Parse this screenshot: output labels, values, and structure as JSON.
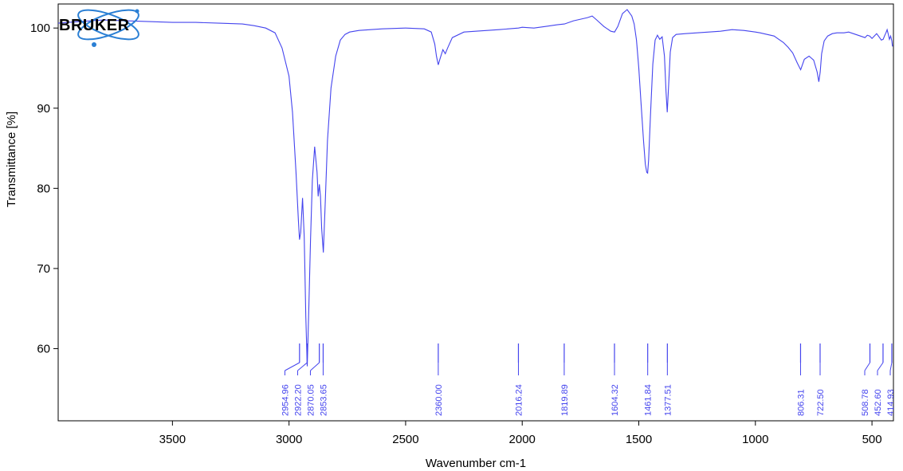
{
  "logo": {
    "text": "BRUKER"
  },
  "chart_data": {
    "type": "line",
    "title": "",
    "xlabel": "Wavenumber cm-1",
    "ylabel": "Transmittance [%]",
    "xlim": [
      3990,
      408
    ],
    "ylim": [
      51,
      103
    ],
    "x_reversed": true,
    "grid": false,
    "line_color": "#4444ee",
    "x_ticks": [
      3500,
      3000,
      2500,
      2000,
      1500,
      1000,
      500
    ],
    "y_ticks": [
      60,
      70,
      80,
      90,
      100
    ],
    "series": [
      {
        "x": [
          3990,
          3900,
          3800,
          3700,
          3600,
          3500,
          3400,
          3300,
          3200,
          3150,
          3100,
          3060,
          3030,
          3000,
          2985,
          2970,
          2960,
          2955,
          2950,
          2942,
          2935,
          2928,
          2922,
          2916,
          2908,
          2900,
          2890,
          2880,
          2875,
          2870,
          2865,
          2860,
          2853,
          2845,
          2835,
          2820,
          2800,
          2780,
          2760,
          2740,
          2700,
          2650,
          2600,
          2500,
          2420,
          2390,
          2375,
          2368,
          2360,
          2352,
          2340,
          2330,
          2320,
          2300,
          2250,
          2200,
          2100,
          2016,
          2000,
          1950,
          1900,
          1850,
          1819,
          1780,
          1750,
          1720,
          1700,
          1680,
          1650,
          1620,
          1604,
          1590,
          1570,
          1550,
          1530,
          1520,
          1510,
          1500,
          1490,
          1480,
          1472,
          1466,
          1462,
          1458,
          1450,
          1440,
          1430,
          1420,
          1410,
          1400,
          1390,
          1383,
          1378,
          1372,
          1365,
          1355,
          1340,
          1300,
          1250,
          1200,
          1150,
          1100,
          1050,
          1000,
          980,
          950,
          920,
          900,
          880,
          860,
          840,
          820,
          806,
          790,
          770,
          750,
          735,
          728,
          722,
          716,
          705,
          690,
          670,
          650,
          620,
          600,
          570,
          550,
          530,
          520,
          510,
          500,
          490,
          480,
          470,
          460,
          452,
          445,
          440,
          435,
          430,
          425,
          420,
          415,
          412
        ],
        "y": [
          100.6,
          100.8,
          101.0,
          100.9,
          100.8,
          100.7,
          100.7,
          100.6,
          100.5,
          100.3,
          100.0,
          99.4,
          97.5,
          94.0,
          89.5,
          82.0,
          76.0,
          73.6,
          74.5,
          78.8,
          74.0,
          64.0,
          57.8,
          64.0,
          73.5,
          81.0,
          85.2,
          82.0,
          79.0,
          80.5,
          79.0,
          75.0,
          72.0,
          78.0,
          86.0,
          92.5,
          96.5,
          98.5,
          99.2,
          99.5,
          99.7,
          99.8,
          99.9,
          100.0,
          99.9,
          99.5,
          98.0,
          96.5,
          95.4,
          96.2,
          97.3,
          96.8,
          97.5,
          98.8,
          99.5,
          99.6,
          99.8,
          100.0,
          100.1,
          100.0,
          100.2,
          100.4,
          100.5,
          100.9,
          101.1,
          101.3,
          101.5,
          101.0,
          100.2,
          99.6,
          99.5,
          100.2,
          101.8,
          102.3,
          101.5,
          100.5,
          98.5,
          95.0,
          90.5,
          86.0,
          83.0,
          82.0,
          81.9,
          83.5,
          89.0,
          95.5,
          98.5,
          99.1,
          98.6,
          98.9,
          96.5,
          92.0,
          89.5,
          93.0,
          97.0,
          98.8,
          99.2,
          99.3,
          99.4,
          99.5,
          99.6,
          99.8,
          99.7,
          99.5,
          99.4,
          99.2,
          99.0,
          98.6,
          98.2,
          97.6,
          96.9,
          95.6,
          94.8,
          96.1,
          96.5,
          96.0,
          94.5,
          93.3,
          94.5,
          96.8,
          98.4,
          99.0,
          99.3,
          99.4,
          99.4,
          99.5,
          99.2,
          99.0,
          98.8,
          99.1,
          99.0,
          98.7,
          99.0,
          99.3,
          98.9,
          98.5,
          98.6,
          99.1,
          99.4,
          99.8,
          99.2,
          98.6,
          99.0,
          98.4,
          97.7
        ]
      }
    ],
    "peaks": [
      {
        "x": 2954.96,
        "label": "2954.96"
      },
      {
        "x": 2922.2,
        "label": "2922.20"
      },
      {
        "x": 2870.05,
        "label": "2870.05"
      },
      {
        "x": 2853.65,
        "label": "2853.65"
      },
      {
        "x": 2360.0,
        "label": "2360.00"
      },
      {
        "x": 2016.24,
        "label": "2016.24"
      },
      {
        "x": 1819.89,
        "label": "1819.89"
      },
      {
        "x": 1604.32,
        "label": "1604.32"
      },
      {
        "x": 1461.84,
        "label": "1461.84"
      },
      {
        "x": 1377.51,
        "label": "1377.51"
      },
      {
        "x": 806.31,
        "label": "806.31"
      },
      {
        "x": 722.5,
        "label": "722.50"
      },
      {
        "x": 508.78,
        "label": "508.78"
      },
      {
        "x": 452.6,
        "label": "452.60"
      },
      {
        "x": 414.93,
        "label": "414.93"
      }
    ]
  }
}
